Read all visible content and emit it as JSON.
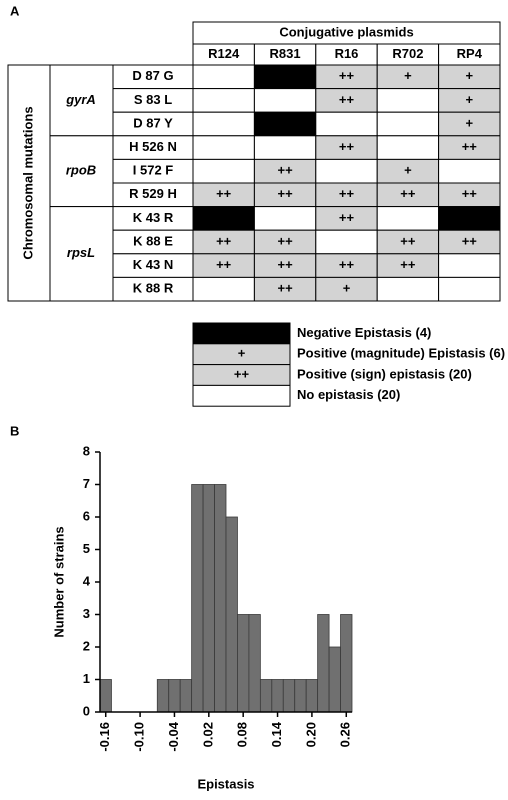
{
  "table": {
    "panel_label": "A",
    "header": "Conjugative plasmids",
    "columns": [
      "R124",
      "R831",
      "R16",
      "R702",
      "RP4"
    ],
    "row_header": "Chromosomal mutations",
    "groups": [
      {
        "gene": "gyrA",
        "rows": [
          {
            "mutation": "D 87 G",
            "cells": [
              null,
              "-",
              "++",
              "+",
              "+"
            ]
          },
          {
            "mutation": "S 83 L",
            "cells": [
              null,
              null,
              "++",
              null,
              "+"
            ]
          },
          {
            "mutation": "D 87 Y",
            "cells": [
              null,
              "-",
              null,
              null,
              "+"
            ]
          }
        ]
      },
      {
        "gene": "rpoB",
        "rows": [
          {
            "mutation": "H 526 N",
            "cells": [
              null,
              null,
              "++",
              null,
              "++"
            ]
          },
          {
            "mutation": "I 572 F",
            "cells": [
              null,
              "++",
              null,
              "+",
              null
            ]
          },
          {
            "mutation": "R 529 H",
            "cells": [
              "++",
              "++",
              "++",
              "++",
              "++"
            ]
          }
        ]
      },
      {
        "gene": "rpsL",
        "rows": [
          {
            "mutation": "K 43 R",
            "cells": [
              "-",
              null,
              "++",
              null,
              "-"
            ]
          },
          {
            "mutation": "K 88 E",
            "cells": [
              "++",
              "++",
              null,
              "++",
              "++"
            ]
          },
          {
            "mutation": "K 43 N",
            "cells": [
              "++",
              "++",
              "++",
              "++",
              null
            ]
          },
          {
            "mutation": "K 88 R",
            "cells": [
              null,
              "++",
              "+",
              null,
              null
            ]
          }
        ]
      }
    ],
    "legend": [
      {
        "symbol": "-",
        "label": "Negative Epistasis (4)",
        "color": "#000000"
      },
      {
        "symbol": "+",
        "label": "Positive (magnitude) Epistasis (6)",
        "color": "#d3d3d3"
      },
      {
        "symbol": "++",
        "label": "Positive (sign) epistasis (20)",
        "color": "#d3d3d3"
      },
      {
        "symbol": null,
        "label": "No epistasis (20)",
        "color": "#ffffff"
      }
    ]
  },
  "chart_data": {
    "type": "bar",
    "panel_label": "B",
    "x": [
      -0.16,
      -0.14,
      -0.12,
      -0.1,
      -0.08,
      -0.06,
      -0.04,
      -0.02,
      0.0,
      0.02,
      0.04,
      0.06,
      0.08,
      0.1,
      0.12,
      0.14,
      0.16,
      0.18,
      0.2,
      0.22,
      0.24,
      0.26
    ],
    "values": [
      1,
      0,
      0,
      0,
      0,
      1,
      1,
      1,
      7,
      7,
      7,
      6,
      3,
      3,
      1,
      1,
      1,
      1,
      1,
      3,
      2,
      3
    ],
    "color": "#707070",
    "xlim": [
      -0.17,
      0.27
    ],
    "ylim": [
      0,
      8
    ],
    "xticks": [
      -0.16,
      {
        "value": -0.1,
        "label": "-0.10"
      },
      -0.04,
      0.02,
      0.08,
      0.14,
      {
        "value": 0.2,
        "label": "0.20"
      },
      0.26
    ],
    "yticks": [
      0,
      1,
      2,
      3,
      4,
      5,
      6,
      7,
      8
    ],
    "xlabel": "Epistasis",
    "ylabel": "Number of strains"
  }
}
